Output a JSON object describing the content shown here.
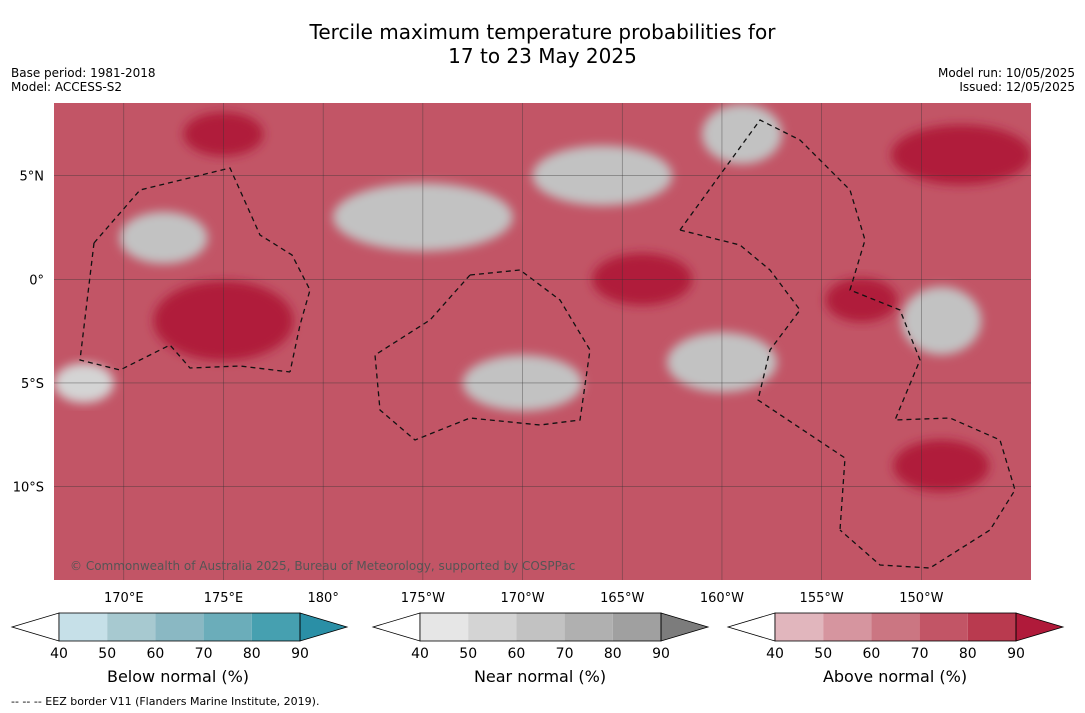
{
  "title": {
    "line1": "Tercile maximum temperature probabilities for",
    "line2": "17 to 23 May 2025"
  },
  "meta_left": {
    "base_period": "Base period: 1981-2018",
    "model": "Model: ACCESS-S2"
  },
  "meta_right": {
    "model_run": "Model run: 10/05/2025",
    "issued": "Issued: 12/05/2025"
  },
  "copyright": "© Commonwealth of Australia 2025, Bureau of Meteorology, supported by COSPPac",
  "footnote": "-- -- -- EEZ border V11 (Flanders Marine Institute, 2019).",
  "chart_data": {
    "type": "heatmap",
    "x_axis": {
      "range": [
        166.5,
        215.5
      ],
      "tick_values": [
        170,
        175,
        180,
        185,
        190,
        195,
        200,
        205,
        210
      ],
      "tick_labels": [
        "170°E",
        "175°E",
        "180°",
        "175°W",
        "170°W",
        "165°W",
        "160°W",
        "155°W",
        "150°W"
      ]
    },
    "y_axis": {
      "range": [
        -14.5,
        8.5
      ],
      "tick_values": [
        5,
        0,
        -5,
        -10
      ],
      "tick_labels": [
        "5°N",
        "0°",
        "5°S",
        "10°S"
      ]
    },
    "grid": true,
    "colorbars": [
      {
        "label": "Below normal (%)",
        "ticks": [
          "40",
          "50",
          "60",
          "70",
          "80",
          "90"
        ],
        "colors": [
          "#ffffff",
          "#c6e0e8",
          "#a7c9d0",
          "#8ab8c3",
          "#6badba",
          "#46a0b0",
          "#2a8fa6"
        ]
      },
      {
        "label": "Near normal (%)",
        "ticks": [
          "40",
          "50",
          "60",
          "70",
          "80",
          "90"
        ],
        "colors": [
          "#ffffff",
          "#e6e6e6",
          "#d4d4d4",
          "#c2c2c2",
          "#b0b0b0",
          "#a0a0a0",
          "#7c7c7c"
        ]
      },
      {
        "label": "Above normal (%)",
        "ticks": [
          "40",
          "50",
          "60",
          "70",
          "80",
          "90"
        ],
        "colors": [
          "#ffffff",
          "#e1b6bd",
          "#d6959f",
          "#cb7682",
          "#c25566",
          "#b93a4f",
          "#b01a3a"
        ]
      }
    ],
    "regions": [
      {
        "category": "above",
        "level": 80,
        "description": "broad warm background"
      },
      {
        "category": "above",
        "level": 90,
        "center": [
          175,
          -2
        ]
      },
      {
        "category": "above",
        "level": 90,
        "center": [
          196,
          0
        ]
      },
      {
        "category": "above",
        "level": 90,
        "center": [
          207,
          -1
        ]
      },
      {
        "category": "above",
        "level": 90,
        "center": [
          211,
          -9
        ]
      },
      {
        "category": "above",
        "level": 90,
        "center": [
          175,
          7
        ]
      },
      {
        "category": "above",
        "level": 90,
        "center": [
          212,
          6
        ]
      },
      {
        "category": "near",
        "level": 60,
        "center": [
          185,
          3
        ]
      },
      {
        "category": "near",
        "level": 60,
        "center": [
          194,
          5
        ]
      },
      {
        "category": "near",
        "level": 60,
        "center": [
          201,
          7
        ]
      },
      {
        "category": "near",
        "level": 60,
        "center": [
          172,
          2
        ]
      },
      {
        "category": "near",
        "level": 60,
        "center": [
          190,
          -5
        ]
      },
      {
        "category": "near",
        "level": 60,
        "center": [
          200,
          -4
        ]
      },
      {
        "category": "near",
        "level": 60,
        "center": [
          211,
          -2
        ]
      },
      {
        "category": "near",
        "level": 50,
        "center": [
          168,
          -5
        ]
      }
    ]
  }
}
